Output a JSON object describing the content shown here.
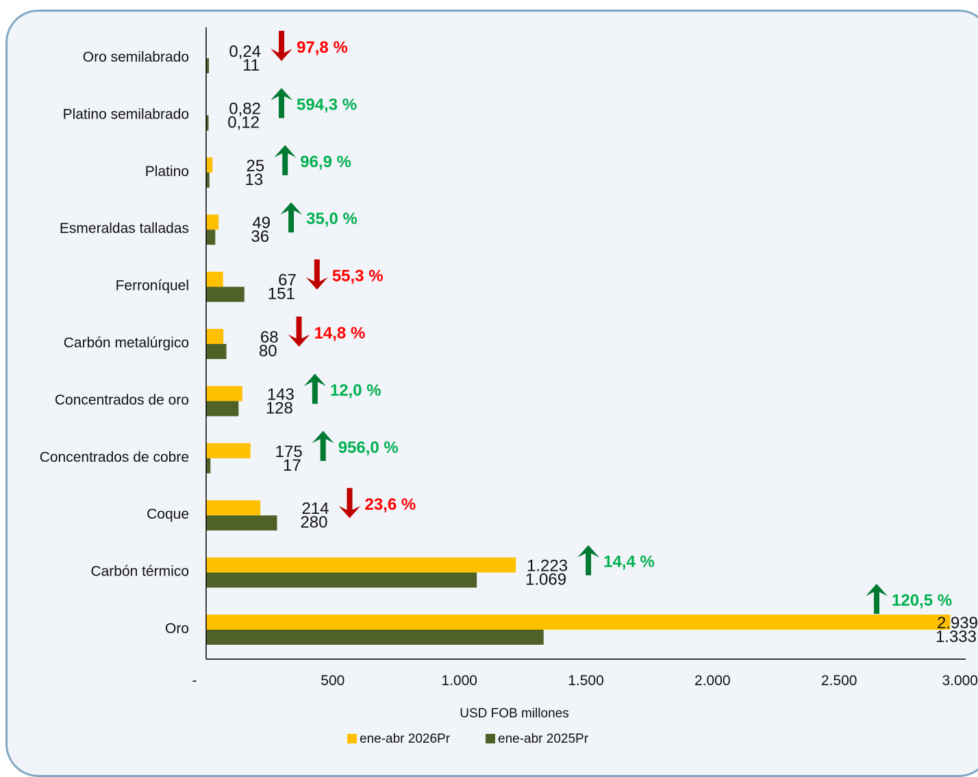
{
  "chart_data": {
    "type": "bar",
    "orientation": "horizontal",
    "categories": [
      "Oro semilabrado",
      "Platino semilabrado",
      "Platino",
      "Esmeraldas talladas",
      "Ferroníquel",
      "Carbón metalúrgico",
      "Concentrados de oro",
      "Concentrados de cobre",
      "Coque",
      "Carbón térmico",
      "Oro"
    ],
    "series": [
      {
        "name": "ene-abr 2026Pr",
        "color": "#ffc000",
        "values": [
          0.24,
          0.82,
          25,
          49,
          67,
          68,
          143,
          175,
          214,
          1223,
          2939
        ],
        "labels": [
          "0,24",
          "0,82",
          "25",
          "49",
          "67",
          "68",
          "143",
          "175",
          "214",
          "1.223",
          "2.939"
        ]
      },
      {
        "name": "ene-abr 2025Pr",
        "color": "#4e6228",
        "values": [
          11,
          0.12,
          13,
          36,
          151,
          80,
          128,
          17,
          280,
          1069,
          1333
        ],
        "labels": [
          "11",
          "0,12",
          "13",
          "36",
          "151",
          "80",
          "128",
          "17",
          "280",
          "1.069",
          "1.333"
        ]
      }
    ],
    "changes": [
      {
        "label": "97,8 %",
        "direction": "down"
      },
      {
        "label": "594,3 %",
        "direction": "up"
      },
      {
        "label": "96,9 %",
        "direction": "up"
      },
      {
        "label": "35,0 %",
        "direction": "up"
      },
      {
        "label": "55,3 %",
        "direction": "down"
      },
      {
        "label": "14,8 %",
        "direction": "down"
      },
      {
        "label": "12,0 %",
        "direction": "up"
      },
      {
        "label": "956,0 %",
        "direction": "up"
      },
      {
        "label": "23,6 %",
        "direction": "down"
      },
      {
        "label": "14,4 %",
        "direction": "up"
      },
      {
        "label": "120,5 %",
        "direction": "up"
      }
    ],
    "xlim": [
      0,
      3000
    ],
    "xticks": [
      0,
      500,
      1000,
      1500,
      2000,
      2500,
      3000
    ],
    "xtick_labels": [
      "-",
      "500",
      "1.000",
      "1.500",
      "2.000",
      "2.500",
      "3.000"
    ],
    "xlabel": "USD FOB millones",
    "legend_position": "bottom",
    "grid": false,
    "up_color": "#00b050",
    "down_color": "#ff0000",
    "up_arrow_color": "#007a33",
    "down_arrow_color": "#c00000"
  }
}
